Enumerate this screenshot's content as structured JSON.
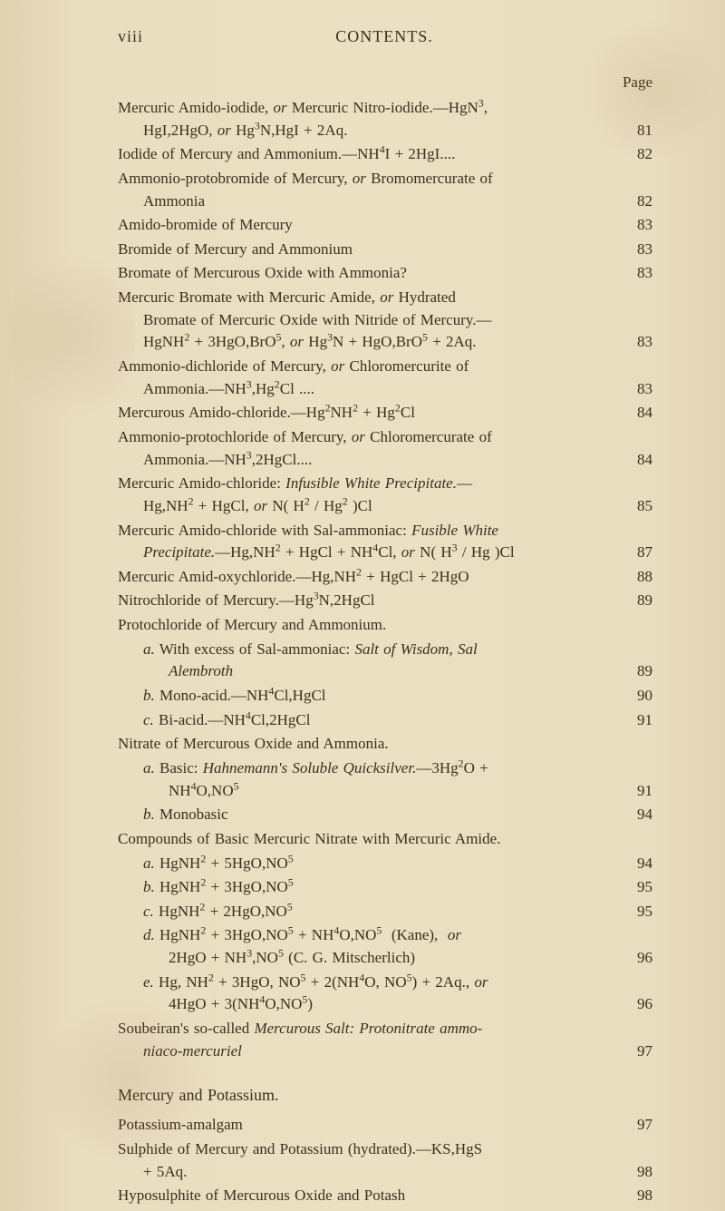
{
  "header": {
    "roman": "viii",
    "title": "CONTENTS."
  },
  "pageLabel": "Page",
  "colors": {
    "paper_bg": "#e9ddbf",
    "text": "#3a2f1f"
  },
  "entries": [
    {
      "lines": [
        "Mercuric Amido-iodide, <i>or</i> Mercuric Nitro-iodide.—HgN<sup>3</sup>,",
        "HgI,2HgO, <i>or</i> Hg<sup>3</sup>N,HgI + 2Aq."
      ],
      "page": "81",
      "indent": 0
    },
    {
      "lines": [
        "Iodide of Mercury and Ammonium.—NH<sup>4</sup>I + 2HgI...."
      ],
      "page": "82",
      "indent": 0
    },
    {
      "lines": [
        "Ammonio-protobromide of Mercury, <i>or</i> Bromomercurate of",
        "Ammonia"
      ],
      "page": "82",
      "indent": 0
    },
    {
      "lines": [
        "Amido-bromide of Mercury"
      ],
      "page": "83",
      "indent": 0
    },
    {
      "lines": [
        "Bromide of Mercury and Ammonium"
      ],
      "page": "83",
      "indent": 0
    },
    {
      "lines": [
        "Bromate of Mercurous Oxide with Ammonia?"
      ],
      "page": "83",
      "indent": 0
    },
    {
      "lines": [
        "Mercuric Bromate with Mercuric Amide, <i>or</i> Hydrated",
        "Bromate of Mercuric Oxide with Nitride of Mercury.—",
        "HgNH<sup>2</sup> + 3HgO,BrO<sup>5</sup>, <i>or</i> Hg<sup>3</sup>N + HgO,BrO<sup>5</sup> + 2Aq."
      ],
      "page": "83",
      "indent": 0
    },
    {
      "lines": [
        "Ammonio-dichloride of Mercury, <i>or</i> Chloromercurite of",
        "Ammonia.—NH<sup>3</sup>,Hg<sup>2</sup>Cl ...."
      ],
      "page": "83",
      "indent": 0
    },
    {
      "lines": [
        "Mercurous Amido-chloride.—Hg<sup>2</sup>NH<sup>2</sup> + Hg<sup>2</sup>Cl"
      ],
      "page": "84",
      "indent": 0
    },
    {
      "lines": [
        "Ammonio-protochloride of Mercury, <i>or</i> Chloromercurate of",
        "Ammonia.—NH<sup>3</sup>,2HgCl...."
      ],
      "page": "84",
      "indent": 0
    },
    {
      "lines": [
        "Mercuric Amido-chloride: <i>Infusible White Precipitate.</i>—",
        "Hg,NH<sup>2</sup> + HgCl, <i>or</i> N( H<sup>2</sup> / Hg<sup>2</sup> )Cl"
      ],
      "page": "85",
      "indent": 0
    },
    {
      "lines": [
        "Mercuric Amido-chloride with Sal-ammoniac: <i>Fusible White</i>",
        "<i>Precipitate.</i>—Hg,NH<sup>2</sup> + HgCl + NH<sup>4</sup>Cl, <i>or</i> N( H<sup>3</sup> / Hg )Cl"
      ],
      "page": "87",
      "indent": 0
    },
    {
      "lines": [
        "Mercuric Amid-oxychloride.—Hg,NH<sup>2</sup> + HgCl + 2HgO"
      ],
      "page": "88",
      "indent": 0
    },
    {
      "lines": [
        "Nitrochloride of Mercury.—Hg<sup>3</sup>N,2HgCl"
      ],
      "page": "89",
      "indent": 0
    },
    {
      "lines": [
        "Protochloride of Mercury and Ammonium."
      ],
      "page": "",
      "indent": 0
    },
    {
      "lines": [
        "<i>a.</i> With excess of Sal-ammoniac: <i>Salt of Wisdom, Sal</i>",
        "<i>Alembroth</i>"
      ],
      "page": "89",
      "indent": 1
    },
    {
      "lines": [
        "<i>b.</i> Mono-acid.—NH<sup>4</sup>Cl,HgCl"
      ],
      "page": "90",
      "indent": 1
    },
    {
      "lines": [
        "<i>c.</i> Bi-acid.—NH<sup>4</sup>Cl,2HgCl"
      ],
      "page": "91",
      "indent": 1
    },
    {
      "lines": [
        "Nitrate of Mercurous Oxide and Ammonia."
      ],
      "page": "",
      "indent": 0
    },
    {
      "lines": [
        "<i>a.</i> Basic: <i>Hahnemann's Soluble Quicksilver.</i>—3Hg<sup>2</sup>O +",
        "NH<sup>4</sup>O,NO<sup>5</sup>"
      ],
      "page": "91",
      "indent": 1
    },
    {
      "lines": [
        "<i>b.</i> Monobasic"
      ],
      "page": "94",
      "indent": 1
    },
    {
      "lines": [
        "Compounds of Basic Mercuric Nitrate with Mercuric Amide."
      ],
      "page": "",
      "indent": 0
    },
    {
      "lines": [
        "<i>a.</i> HgNH<sup>2</sup> + 5HgO,NO<sup>5</sup>"
      ],
      "page": "94",
      "indent": 1
    },
    {
      "lines": [
        "<i>b.</i> HgNH<sup>2</sup> + 3HgO,NO<sup>5</sup>"
      ],
      "page": "95",
      "indent": 1
    },
    {
      "lines": [
        "<i>c.</i> HgNH<sup>2</sup> + 2HgO,NO<sup>5</sup>"
      ],
      "page": "95",
      "indent": 1
    },
    {
      "lines": [
        "<i>d.</i> HgNH<sup>2</sup> + 3HgO,NO<sup>5</sup> + NH<sup>4</sup>O,NO<sup>5</sup>&nbsp;&nbsp;(Kane),&nbsp;&nbsp;<i>or</i>",
        "2HgO + NH<sup>3</sup>,NO<sup>5</sup> (C. G. Mitscherlich)"
      ],
      "page": "96",
      "indent": 1
    },
    {
      "lines": [
        "<i>e.</i> Hg, NH<sup>2</sup> + 3HgO, NO<sup>5</sup> + 2(NH<sup>4</sup>O, NO<sup>5</sup>) + 2Aq., <i>or</i>",
        "4HgO + 3(NH<sup>4</sup>O,NO<sup>5</sup>)"
      ],
      "page": "96",
      "indent": 1
    },
    {
      "lines": [
        "Soubeiran's so-called <i>Mercurous Salt: Protonitrate ammo-</i>",
        "<i>niaco-mercuriel</i>"
      ],
      "page": "97",
      "indent": 0
    }
  ],
  "section2": {
    "title": "Mercury and Potassium.",
    "entries": [
      {
        "lines": [
          "Potassium-amalgam"
        ],
        "page": "97",
        "indent": 0
      },
      {
        "lines": [
          "Sulphide of Mercury and Potassium (hydrated).—KS,HgS",
          "+ 5Aq."
        ],
        "page": "98",
        "indent": 0
      },
      {
        "lines": [
          "Hyposulphite of Mercurous Oxide and Potash"
        ],
        "page": "98",
        "indent": 0
      }
    ]
  }
}
